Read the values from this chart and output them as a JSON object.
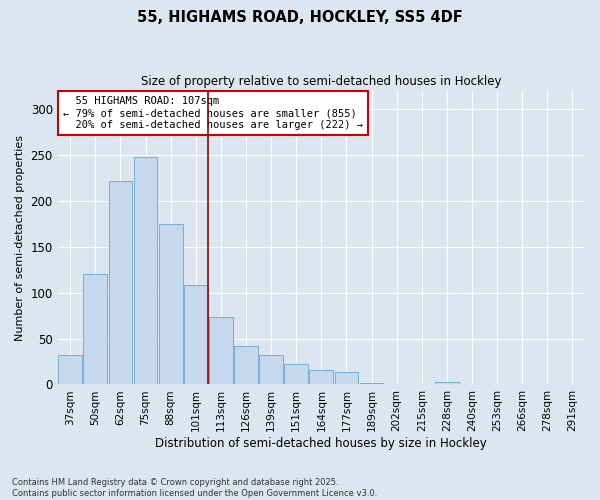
{
  "title_line1": "55, HIGHAMS ROAD, HOCKLEY, SS5 4DF",
  "title_line2": "Size of property relative to semi-detached houses in Hockley",
  "xlabel": "Distribution of semi-detached houses by size in Hockley",
  "ylabel": "Number of semi-detached properties",
  "footnote": "Contains HM Land Registry data © Crown copyright and database right 2025.\nContains public sector information licensed under the Open Government Licence v3.0.",
  "bar_labels": [
    "37sqm",
    "50sqm",
    "62sqm",
    "75sqm",
    "88sqm",
    "101sqm",
    "113sqm",
    "126sqm",
    "139sqm",
    "151sqm",
    "164sqm",
    "177sqm",
    "189sqm",
    "202sqm",
    "215sqm",
    "228sqm",
    "240sqm",
    "253sqm",
    "266sqm",
    "278sqm",
    "291sqm"
  ],
  "bar_values": [
    32,
    120,
    222,
    248,
    175,
    108,
    73,
    42,
    32,
    22,
    16,
    14,
    2,
    0,
    0,
    3,
    0,
    0,
    0,
    0,
    1
  ],
  "bar_color": "#c5d8ee",
  "bar_edgecolor": "#7aadd4",
  "property_line_label": "55 HIGHAMS ROAD: 107sqm",
  "pct_smaller": "79% of semi-detached houses are smaller (855)",
  "pct_larger": "20% of semi-detached houses are larger (222)",
  "vline_x": 5.5,
  "vline_color": "#990000",
  "bg_color": "#dce6f0",
  "grid_color": "#ffffff",
  "annotation_box_color": "#cc0000",
  "ylim": [
    0,
    320
  ],
  "yticks": [
    0,
    50,
    100,
    150,
    200,
    250,
    300
  ]
}
